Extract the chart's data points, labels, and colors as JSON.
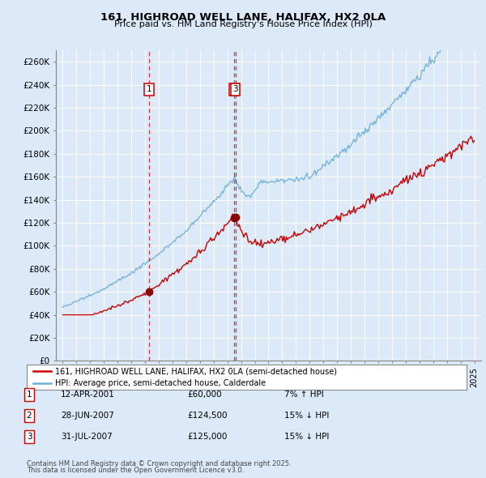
{
  "title": "161, HIGHROAD WELL LANE, HALIFAX, HX2 0LA",
  "subtitle": "Price paid vs. HM Land Registry's House Price Index (HPI)",
  "ylabel_ticks": [
    "£0",
    "£20K",
    "£40K",
    "£60K",
    "£80K",
    "£100K",
    "£120K",
    "£140K",
    "£160K",
    "£180K",
    "£200K",
    "£220K",
    "£240K",
    "£260K"
  ],
  "ytick_values": [
    0,
    20000,
    40000,
    60000,
    80000,
    100000,
    120000,
    140000,
    160000,
    180000,
    200000,
    220000,
    240000,
    260000
  ],
  "ylim": [
    0,
    270000
  ],
  "xlim_start": 1994.5,
  "xlim_end": 2025.5,
  "background_color": "#dce9f8",
  "plot_bg_color": "#dce9f8",
  "grid_color": "#ffffff",
  "hpi_line_color": "#6baed6",
  "price_line_color": "#cc0000",
  "transaction_marker_color": "#8b0000",
  "transactions": [
    {
      "num": 1,
      "date": "12-APR-2001",
      "price": 60000,
      "x_year": 2001.28,
      "label": "7% ↑ HPI"
    },
    {
      "num": 2,
      "date": "28-JUN-2007",
      "price": 124500,
      "x_year": 2007.49,
      "label": "15% ↓ HPI"
    },
    {
      "num": 3,
      "date": "31-JUL-2007",
      "price": 125000,
      "x_year": 2007.58,
      "label": "15% ↓ HPI"
    }
  ],
  "legend_line1": "161, HIGHROAD WELL LANE, HALIFAX, HX2 0LA (semi-detached house)",
  "legend_line2": "HPI: Average price, semi-detached house, Calderdale",
  "footer1": "Contains HM Land Registry data © Crown copyright and database right 2025.",
  "footer2": "This data is licensed under the Open Government Licence v3.0.",
  "table_rows": [
    {
      "num": 1,
      "date": "12-APR-2001",
      "price": "£60,000",
      "change": "7% ↑ HPI"
    },
    {
      "num": 2,
      "date": "28-JUN-2007",
      "price": "£124,500",
      "change": "15% ↓ HPI"
    },
    {
      "num": 3,
      "date": "31-JUL-2007",
      "price": "£125,000",
      "change": "15% ↓ HPI"
    }
  ]
}
